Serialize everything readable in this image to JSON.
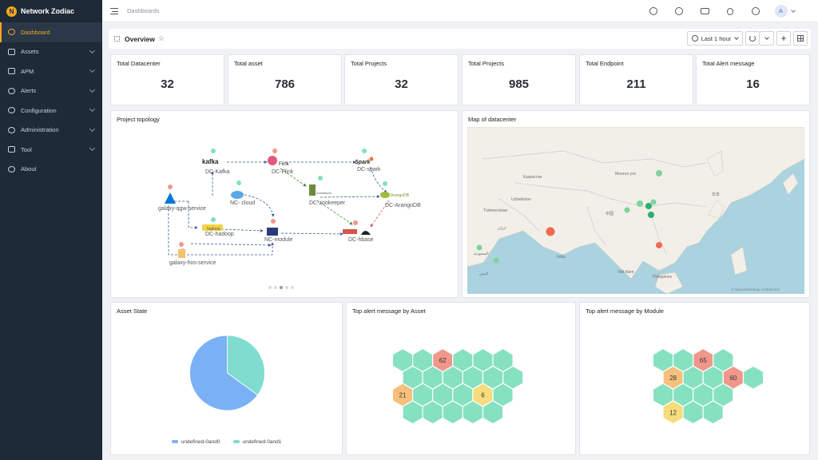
{
  "app": {
    "name": "Network Zodiac",
    "logo_letter": "N"
  },
  "sidebar": {
    "items": [
      {
        "label": "Dashboard",
        "active": true,
        "has_chevron": false
      },
      {
        "label": "Assets",
        "active": false,
        "has_chevron": true
      },
      {
        "label": "APM",
        "active": false,
        "has_chevron": true
      },
      {
        "label": "Alerts",
        "active": false,
        "has_chevron": true
      },
      {
        "label": "Configuration",
        "active": false,
        "has_chevron": true
      },
      {
        "label": "Administration",
        "active": false,
        "has_chevron": true
      },
      {
        "label": "Tool",
        "active": false,
        "has_chevron": true
      },
      {
        "label": "About",
        "active": false,
        "has_chevron": false
      }
    ]
  },
  "topbar": {
    "breadcrumb": "Dashboards",
    "icons": [
      "search-icon",
      "compass-icon",
      "calendar-icon",
      "bulb-icon",
      "globe-icon"
    ],
    "avatar_letter": "A"
  },
  "overview": {
    "title": "Overview",
    "time_range": "Last 1 hour"
  },
  "stats": [
    {
      "label": "Total Datacenter",
      "value": "32"
    },
    {
      "label": "Total asset",
      "value": "786"
    },
    {
      "label": "Total Projects",
      "value": "32"
    },
    {
      "label": "Total Projects",
      "value": "985"
    },
    {
      "label": "Total Endpoint",
      "value": "211"
    },
    {
      "label": "Total Alert message",
      "value": "16"
    }
  ],
  "topology": {
    "title": "Project topology",
    "nodes": {
      "kafka": "DC-Kafka",
      "flink": "DC-Flink",
      "spark": "DC-spark",
      "zookeeper": "DC-zookeeper",
      "arangodb": "DC-ArangoDB",
      "qgw": "galaxy-qgw-service",
      "cloud": "NC- cloud",
      "hadoop": "DC-hadoop",
      "module": "NC-module",
      "hbase": "DC-hbase",
      "hos": "galaxy-hos-service"
    },
    "logos": {
      "kafka": "kafka",
      "flink": "Flink",
      "spark": "Spark",
      "arangodb": "ArangoDB",
      "zookeeper": "Zookeeper",
      "hadoop": "hadoop"
    }
  },
  "map": {
    "title": "Map of datacenter",
    "attribution": "© OpenStreetMap contributors",
    "labels": [
      "Казахстан",
      "Монгол улс",
      "Uzbekistan",
      "Türkmenistan",
      "中国",
      "日本",
      "ایران",
      "India",
      "Việt Nam",
      "Philippines",
      "السعودية",
      "اليمن"
    ]
  },
  "asset_state": {
    "title": "Asset State",
    "chart_data": {
      "type": "pie",
      "series": [
        {
          "name": "undefined-0and0",
          "value": 65,
          "color": "#7ab1f4"
        },
        {
          "name": "undefined-0and1",
          "value": 35,
          "color": "#7fdccf"
        }
      ]
    }
  },
  "alert_by_asset": {
    "title": "Top alert message by Asset",
    "rows": [
      [
        "",
        "",
        "62",
        "",
        "",
        ""
      ],
      [
        "",
        "",
        "",
        "",
        "",
        ""
      ],
      [
        "21",
        "",
        "",
        "",
        "6",
        ""
      ],
      [
        "",
        "",
        "",
        "",
        ""
      ]
    ],
    "colors": {
      "62": "#f0978c",
      "21": "#f6c07c",
      "6": "#f6dc7c"
    }
  },
  "alert_by_module": {
    "title": "Top alert message by Module",
    "rows": [
      [
        "",
        "",
        "65",
        ""
      ],
      [
        "28",
        "",
        "",
        "60",
        ""
      ],
      [
        "",
        "",
        "",
        ""
      ],
      [
        "12",
        "",
        ""
      ]
    ],
    "colors": {
      "65": "#f0978c",
      "60": "#f0978c",
      "28": "#f6c07c",
      "12": "#f6dc7c"
    }
  },
  "colors": {
    "accent": "#f5a623",
    "hex_default": "#86e1c0",
    "sidebar_bg": "#1f2a38"
  }
}
